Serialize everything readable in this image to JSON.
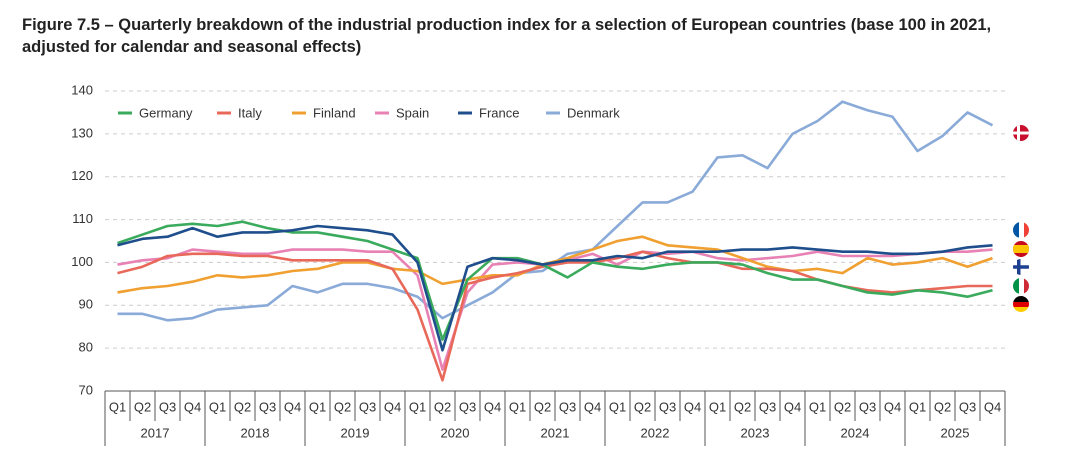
{
  "chart_data": {
    "type": "line",
    "title": "Figure 7.5 – Quarterly breakdown of the industrial production index for a selection of European countries (base 100 in 2021, adjusted for calendar and seasonal effects)",
    "categories": [
      "Q1",
      "Q2",
      "Q3",
      "Q4",
      "Q1",
      "Q2",
      "Q3",
      "Q4",
      "Q1",
      "Q2",
      "Q3",
      "Q4",
      "Q1",
      "Q2",
      "Q3",
      "Q4",
      "Q1",
      "Q2",
      "Q3",
      "Q4",
      "Q1",
      "Q2",
      "Q3",
      "Q4",
      "Q1",
      "Q2",
      "Q3",
      "Q4",
      "Q1",
      "Q2",
      "Q3",
      "Q4",
      "Q1",
      "Q2",
      "Q3",
      "Q4"
    ],
    "years": [
      "2017",
      "2018",
      "2019",
      "2020",
      "2021",
      "2022",
      "2023",
      "2024",
      "2025"
    ],
    "series": [
      {
        "name": "Germany",
        "color": "#3aaa5c",
        "values": [
          104.5,
          106.5,
          108.5,
          109,
          108.5,
          109.5,
          108,
          107,
          107,
          106,
          105,
          103,
          101,
          82,
          96,
          101,
          101,
          99.5,
          96.5,
          100,
          99,
          98.5,
          99.5,
          100,
          100,
          99.5,
          97.5,
          96,
          96,
          94.5,
          93,
          92.5,
          93.5,
          93,
          92,
          93.5
        ]
      },
      {
        "name": "Italy",
        "color": "#e8685a",
        "values": [
          97.5,
          99,
          101.5,
          102,
          102,
          101.5,
          101.5,
          100.5,
          100.5,
          100.5,
          100.5,
          98.5,
          89,
          72.5,
          95,
          96.5,
          97.5,
          99,
          100,
          100,
          101,
          102.5,
          101,
          100,
          100,
          98.5,
          98.5,
          98,
          96,
          94.5,
          93.5,
          93,
          93.5,
          94,
          94.5,
          94.5
        ]
      },
      {
        "name": "Finland",
        "color": "#f0a030",
        "values": [
          93,
          94,
          94.5,
          95.5,
          97,
          96.5,
          97,
          98,
          98.5,
          100,
          100,
          98.5,
          98,
          95,
          96,
          97,
          97,
          99.5,
          101,
          103,
          105,
          106,
          104,
          103.5,
          103,
          101,
          99,
          98,
          98.5,
          97.5,
          101,
          99.5,
          100,
          101,
          99,
          101
        ]
      },
      {
        "name": "Spain",
        "color": "#e882b4",
        "values": [
          99.5,
          100.5,
          101,
          103,
          102.5,
          102,
          102,
          103,
          103,
          103,
          102.5,
          102.5,
          97,
          75,
          93,
          99.5,
          100,
          99.5,
          100.5,
          102,
          99.5,
          102.5,
          102,
          102.5,
          101,
          100.5,
          101,
          101.5,
          102.5,
          101.5,
          101.5,
          101.5,
          102,
          102.5,
          102.5,
          103
        ]
      },
      {
        "name": "France",
        "color": "#1f4e8c",
        "values": [
          104,
          105.5,
          106,
          108,
          106,
          107,
          107,
          107.5,
          108.5,
          108,
          107.5,
          106.5,
          100,
          79.5,
          99,
          101,
          100.5,
          99.5,
          100.5,
          100.5,
          101.5,
          101,
          102.5,
          102.5,
          102.5,
          103,
          103,
          103.5,
          103,
          102.5,
          102.5,
          102,
          102,
          102.5,
          103.5,
          104
        ]
      },
      {
        "name": "Denmark",
        "color": "#8aaad8",
        "values": [
          88,
          88,
          86.5,
          87,
          89,
          89.5,
          90,
          94.5,
          93,
          95,
          95,
          94,
          92,
          87,
          90,
          93,
          97.5,
          98,
          102,
          103,
          108.5,
          114,
          114,
          116.5,
          124.5,
          125,
          122,
          130,
          133,
          137.5,
          135.5,
          134,
          126,
          129.5,
          135,
          132
        ]
      }
    ],
    "ylim": [
      70,
      140
    ],
    "yticks": [
      70,
      80,
      90,
      100,
      110,
      120,
      130,
      140
    ],
    "grid": true
  }
}
